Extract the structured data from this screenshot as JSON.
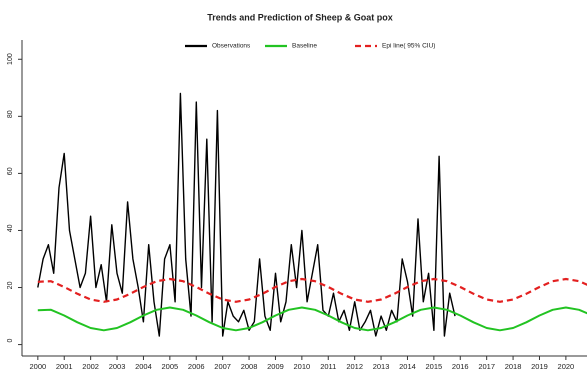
{
  "chart_data": {
    "type": "line",
    "title": "Trends and Prediction of Sheep & Goat pox",
    "xlim": [
      1999.4,
      2020.8
    ],
    "ylim": [
      -4,
      105
    ],
    "xticks": [
      2000,
      2001,
      2002,
      2003,
      2004,
      2005,
      2006,
      2007,
      2008,
      2009,
      2010,
      2011,
      2012,
      2013,
      2014,
      2015,
      2016,
      2017,
      2018,
      2019,
      2020
    ],
    "yticks": [
      0,
      20,
      40,
      60,
      80,
      100
    ],
    "legend": "top",
    "series": [
      {
        "name": "Observations",
        "color": "#000000",
        "dashed": false,
        "x": [
          2000,
          2000.2,
          2000.4,
          2000.6,
          2000.8,
          2001,
          2001.2,
          2001.4,
          2001.6,
          2001.8,
          2002,
          2002.2,
          2002.4,
          2002.6,
          2002.8,
          2003,
          2003.2,
          2003.4,
          2003.6,
          2003.8,
          2004,
          2004.2,
          2004.4,
          2004.6,
          2004.8,
          2005,
          2005.2,
          2005.4,
          2005.6,
          2005.8,
          2006,
          2006.2,
          2006.4,
          2006.6,
          2006.8,
          2007,
          2007.2,
          2007.4,
          2007.6,
          2007.8,
          2008,
          2008.2,
          2008.4,
          2008.6,
          2008.8,
          2009,
          2009.2,
          2009.4,
          2009.6,
          2009.8,
          2010,
          2010.2,
          2010.4,
          2010.6,
          2010.8,
          2011,
          2011.2,
          2011.4,
          2011.6,
          2011.8,
          2012,
          2012.2,
          2012.4,
          2012.6,
          2012.8,
          2013,
          2013.2,
          2013.4,
          2013.6,
          2013.8,
          2014,
          2014.2,
          2014.4,
          2014.6,
          2014.8,
          2015,
          2015.2,
          2015.4,
          2015.6,
          2015.8
        ],
        "values": [
          20,
          30,
          35,
          25,
          55,
          67,
          40,
          30,
          20,
          25,
          45,
          20,
          28,
          15,
          42,
          25,
          18,
          50,
          30,
          20,
          8,
          35,
          15,
          3,
          30,
          35,
          15,
          88,
          30,
          10,
          85,
          20,
          72,
          8,
          82,
          3,
          15,
          10,
          8,
          12,
          5,
          8,
          30,
          10,
          5,
          25,
          8,
          15,
          35,
          20,
          40,
          15,
          25,
          35,
          12,
          10,
          18,
          8,
          12,
          5,
          15,
          5,
          8,
          12,
          3,
          10,
          5,
          12,
          8,
          30,
          22,
          10,
          44,
          15,
          25,
          5,
          66,
          3,
          18,
          10
        ]
      },
      {
        "name": "Baseline",
        "color": "#22c322",
        "dashed": false,
        "x": [
          2000,
          2000.5,
          2001,
          2001.5,
          2002,
          2002.5,
          2003,
          2003.5,
          2004,
          2004.5,
          2005,
          2005.5,
          2006,
          2006.5,
          2007,
          2007.5,
          2008,
          2008.5,
          2009,
          2009.5,
          2010,
          2010.5,
          2011,
          2011.5,
          2012,
          2012.5,
          2013,
          2013.5,
          2014,
          2014.5,
          2015,
          2015.5,
          2016,
          2016.5,
          2017,
          2017.5,
          2018,
          2018.5,
          2019,
          2019.5,
          2020,
          2020.5,
          2021
        ],
        "values": [
          12,
          12.2,
          10.2,
          7.8,
          5.8,
          5,
          5.8,
          7.8,
          10.2,
          12.2,
          13,
          12.2,
          10.2,
          7.8,
          5.8,
          5,
          5.8,
          7.8,
          10.2,
          12.2,
          13,
          12.2,
          10.2,
          7.8,
          5.8,
          5,
          5.8,
          7.8,
          10.2,
          12.2,
          13,
          12.2,
          10.2,
          7.8,
          5.8,
          5,
          5.8,
          7.8,
          10.2,
          12.2,
          13,
          12.2,
          10.2
        ]
      },
      {
        "name": "Epi line( 95% CIU)",
        "color": "#e32020",
        "dashed": true,
        "x": [
          2000,
          2000.5,
          2001,
          2001.5,
          2002,
          2002.5,
          2003,
          2003.5,
          2004,
          2004.5,
          2005,
          2005.5,
          2006,
          2006.5,
          2007,
          2007.5,
          2008,
          2008.5,
          2009,
          2009.5,
          2010,
          2010.5,
          2011,
          2011.5,
          2012,
          2012.5,
          2013,
          2013.5,
          2014,
          2014.5,
          2015,
          2015.5,
          2016,
          2016.5,
          2017,
          2017.5,
          2018,
          2018.5,
          2019,
          2019.5,
          2020,
          2020.5,
          2021
        ],
        "values": [
          22,
          22.2,
          20.2,
          17.8,
          15.8,
          15,
          15.8,
          17.8,
          20.2,
          22.2,
          23,
          22.2,
          20.2,
          17.8,
          15.8,
          15,
          15.8,
          17.8,
          20.2,
          22.2,
          23,
          22.2,
          20.2,
          17.8,
          15.8,
          15,
          15.8,
          17.8,
          20.2,
          22.2,
          23,
          22.2,
          20.2,
          17.8,
          15.8,
          15,
          15.8,
          17.8,
          20.2,
          22.2,
          23,
          22.2,
          20.2
        ]
      }
    ]
  }
}
